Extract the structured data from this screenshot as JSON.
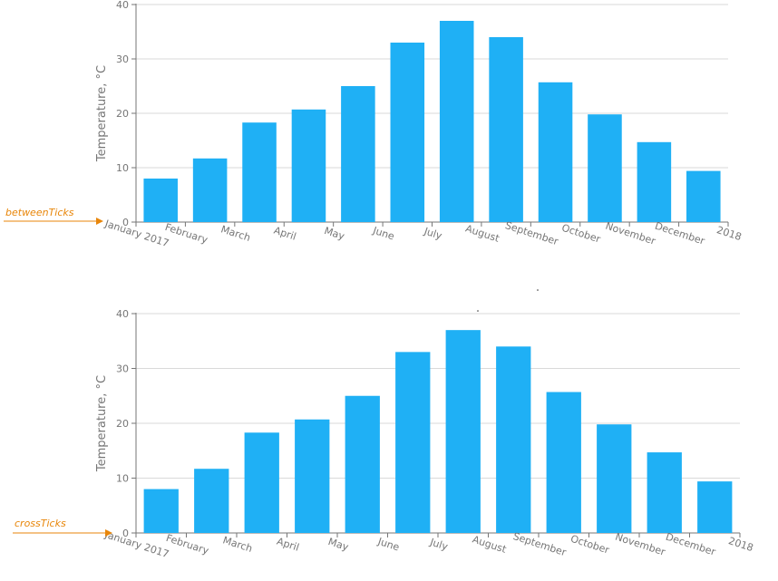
{
  "chart_data": [
    {
      "type": "bar",
      "label_placement": "betweenTicks",
      "annotation": "betweenTicks",
      "ylabel": "Temperature, °C",
      "ylim": [
        0,
        40
      ],
      "yticks": [
        0,
        10,
        20,
        30,
        40
      ],
      "grid": true,
      "categories": [
        "January 2017",
        "February",
        "March",
        "April",
        "May",
        "June",
        "July",
        "August",
        "September",
        "October",
        "November",
        "December"
      ],
      "end_label": "2018",
      "values": [
        8,
        11.7,
        18.3,
        20.7,
        25,
        33,
        37,
        34,
        25.7,
        19.8,
        14.7,
        9.4
      ]
    },
    {
      "type": "bar",
      "label_placement": "crossTicks",
      "annotation": "crossTicks",
      "ylabel": "Temperature, °C",
      "ylim": [
        0,
        40
      ],
      "yticks": [
        0,
        10,
        20,
        30,
        40
      ],
      "grid": true,
      "categories": [
        "January 2017",
        "February",
        "March",
        "April",
        "May",
        "June",
        "July",
        "August",
        "September",
        "October",
        "November",
        "December"
      ],
      "end_label": "2018",
      "values": [
        8,
        11.7,
        18.3,
        20.7,
        25,
        33,
        37,
        34,
        25.7,
        19.8,
        14.7,
        9.4
      ]
    }
  ],
  "colors": {
    "bar": "#1fb0f5",
    "annotation": "#e8860a",
    "axis_text": "#767676",
    "grid": "#d9d9d9"
  }
}
